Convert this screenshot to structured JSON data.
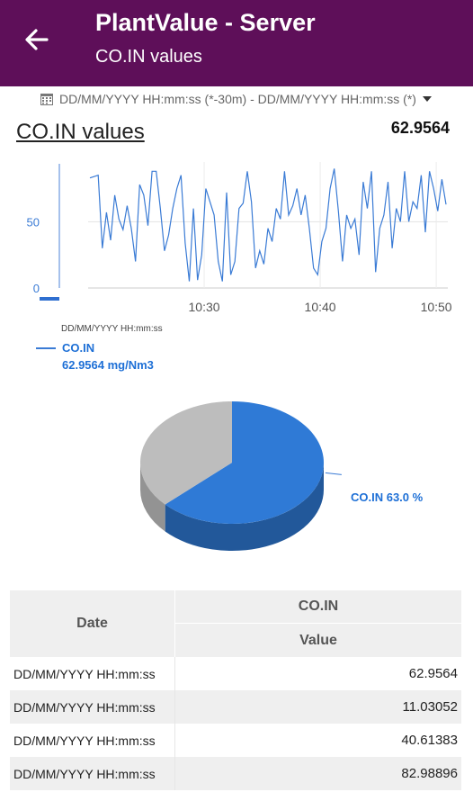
{
  "appbar": {
    "title": "PlantValue - Server",
    "subtitle": "CO.IN values",
    "back_icon": "arrow-left-icon",
    "background": "#5e0f59"
  },
  "range": {
    "text": "DD/MM/YYYY HH:mm:ss (*-30m) - DD/MM/YYYY HH:mm:ss (*)",
    "calendar_icon": "calendar-icon",
    "caret_icon": "caret-down-icon"
  },
  "chart_header": {
    "title": "CO.IN values",
    "current_value": "62.9564"
  },
  "chart_data": [
    {
      "type": "line",
      "x_tick_labels": [
        "10:30",
        "10:40",
        "10:50"
      ],
      "x_range": [
        "10:20",
        "10:51"
      ],
      "y_tick_labels": [
        "0",
        "50"
      ],
      "ylim": [
        0,
        95
      ],
      "grid": true,
      "legend_placement": "bottom-left",
      "series": [
        {
          "name": "CO.IN",
          "color": "#3a7bd5",
          "values": [
            83,
            84,
            85,
            30,
            57,
            36,
            70,
            52,
            44,
            62,
            45,
            20,
            78,
            70,
            47,
            88,
            88,
            60,
            28,
            40,
            60,
            75,
            85,
            34,
            5,
            60,
            6,
            25,
            75,
            65,
            55,
            20,
            5,
            72,
            10,
            20,
            60,
            64,
            88,
            65,
            15,
            28,
            18,
            45,
            35,
            60,
            52,
            88,
            55,
            62,
            75,
            55,
            70,
            45,
            15,
            10,
            35,
            45,
            75,
            90,
            58,
            20,
            55,
            45,
            52,
            25,
            80,
            60,
            88,
            12,
            45,
            55,
            80,
            30,
            60,
            50,
            88,
            50,
            65,
            60,
            85,
            42,
            88,
            75,
            58,
            82,
            63
          ]
        }
      ],
      "timestamp_label": "DD/MM/YYYY HH:mm:ss",
      "legend_value": "62.9564 mg/Nm3"
    },
    {
      "type": "pie",
      "slices": [
        {
          "name": "CO.IN",
          "percent": 63.0,
          "color": "#2f7ad6",
          "label": "CO.IN 63.0 %"
        },
        {
          "name": "",
          "percent": 37.0,
          "color": "#bdbdbd"
        }
      ]
    }
  ],
  "table": {
    "header_date": "Date",
    "header_group": "CO.IN",
    "header_value": "Value",
    "rows": [
      {
        "date": "DD/MM/YYYY HH:mm:ss",
        "value": "62.9564"
      },
      {
        "date": "DD/MM/YYYY HH:mm:ss",
        "value": "11.03052"
      },
      {
        "date": "DD/MM/YYYY HH:mm:ss",
        "value": "40.61383"
      },
      {
        "date": "DD/MM/YYYY HH:mm:ss",
        "value": "82.98896"
      }
    ]
  }
}
